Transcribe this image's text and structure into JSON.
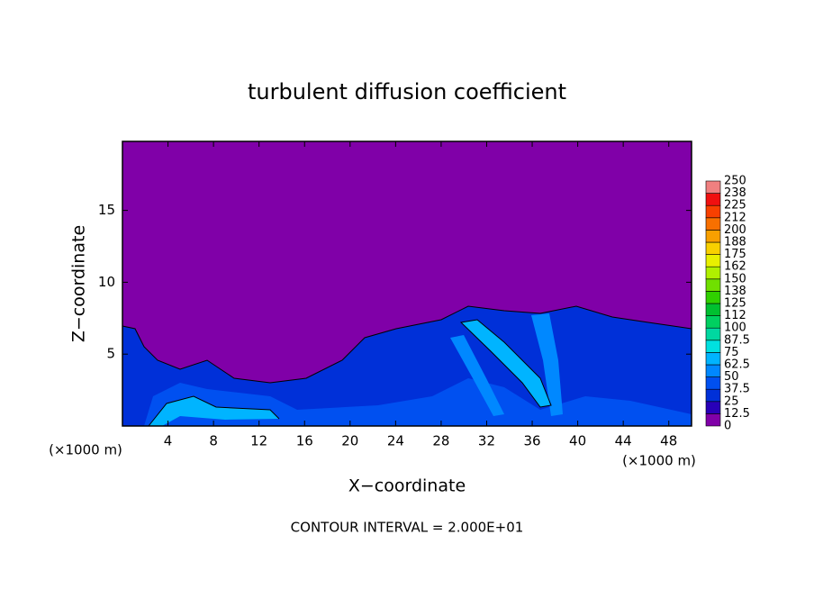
{
  "chart_data": {
    "type": "contour",
    "title": "turbulent diffusion coefficient",
    "x_label": "X−coordinate",
    "y_label": "Z−coordinate",
    "x_units": "(×1000 m)",
    "y_units": "(×1000 m)",
    "contour_interval_label": "CONTOUR INTERVAL = 2.000E+01",
    "xlim": [
      0,
      50
    ],
    "xticks": [
      4,
      8,
      12,
      16,
      20,
      24,
      28,
      32,
      36,
      40,
      44,
      48
    ],
    "ylim": [
      0,
      19.8
    ],
    "yticks": [
      5,
      10,
      15
    ],
    "colorbar": {
      "levels": [
        0,
        12.5,
        25,
        37.5,
        50,
        62.5,
        75,
        87.5,
        100,
        {
          "value": 112.5,
          "label": "112"
        },
        125,
        {
          "value": 137.5,
          "label": "138"
        },
        150,
        {
          "value": 162.5,
          "label": "162"
        },
        175,
        {
          "value": 187.5,
          "label": "188"
        },
        200,
        {
          "value": 212.5,
          "label": "212"
        },
        225,
        {
          "value": 237.5,
          "label": "238"
        },
        250
      ],
      "colors": [
        "#8000a8",
        "#2800b8",
        "#0030d8",
        "#0050f0",
        "#0088ff",
        "#00b4ff",
        "#00e0e0",
        "#00d8a0",
        "#00d060",
        "#00c030",
        "#30d000",
        "#70e000",
        "#b0f000",
        "#e8f000",
        "#f8d000",
        "#f8a000",
        "#f87000",
        "#f84000",
        "#f01010",
        "#f08080"
      ]
    }
  }
}
